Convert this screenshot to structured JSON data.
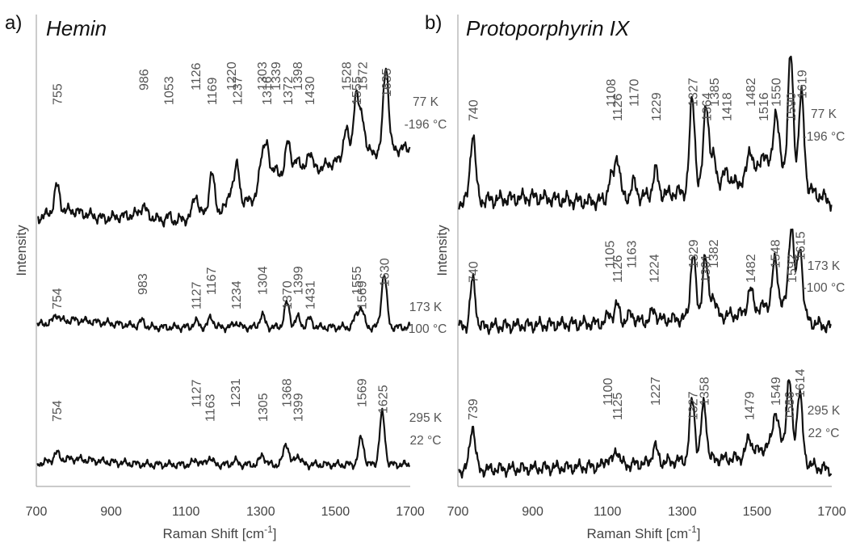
{
  "chart_data": [
    {
      "type": "line",
      "panel_label": "a)",
      "title": "Hemin",
      "xlabel": "Raman Shift [cm",
      "xlabel_sup": "-1",
      "xlabel_end": "]",
      "ylabel": "Intensity",
      "xlim": [
        700,
        1700
      ],
      "xticks": [
        700,
        900,
        1100,
        1300,
        1500,
        1700
      ],
      "y_tick_labels": false,
      "grid": false,
      "series": [
        {
          "temperature_label": [
            "77 K",
            "-196 °C"
          ],
          "baseline": [
            [
              700,
              0.05
            ],
            [
              760,
              0.17
            ],
            [
              800,
              0.16
            ],
            [
              880,
              0.05
            ],
            [
              980,
              0.12
            ],
            [
              1050,
              0.0
            ],
            [
              1100,
              0.05
            ],
            [
              1250,
              0.25
            ],
            [
              1350,
              0.55
            ],
            [
              1450,
              0.75
            ],
            [
              1550,
              0.95
            ],
            [
              1700,
              1.05
            ]
          ],
          "peaks": [
            {
              "x": 755,
              "label": "755",
              "height": 0.35
            },
            {
              "x": 986,
              "label": "986",
              "height": 0.12
            },
            {
              "x": 1053,
              "label": "1053",
              "height": 0.08
            },
            {
              "x": 1126,
              "label": "1126",
              "height": 0.3
            },
            {
              "x": 1169,
              "label": "1169",
              "height": 0.55
            },
            {
              "x": 1220,
              "label": "1220",
              "height": 0.25
            },
            {
              "x": 1237,
              "label": "1237",
              "height": 0.55
            },
            {
              "x": 1303,
              "label": "1303",
              "height": 0.45
            },
            {
              "x": 1316,
              "label": "1316",
              "height": 0.6
            },
            {
              "x": 1339,
              "label": "1339",
              "height": 0.3
            },
            {
              "x": 1372,
              "label": "1372",
              "height": 0.6
            },
            {
              "x": 1398,
              "label": "1398",
              "height": 0.3
            },
            {
              "x": 1430,
              "label": "1430",
              "height": 0.3
            },
            {
              "x": 1528,
              "label": "1528",
              "height": 0.4
            },
            {
              "x": 1555,
              "label": "1555",
              "height": 0.85
            },
            {
              "x": 1572,
              "label": "1572",
              "height": 0.5
            },
            {
              "x": 1635,
              "label": "1635",
              "height": 1.2
            }
          ]
        },
        {
          "temperature_label": [
            "173 K",
            "-100 °C"
          ],
          "baseline": [
            [
              700,
              0.05
            ],
            [
              760,
              0.12
            ],
            [
              800,
              0.15
            ],
            [
              900,
              0.08
            ],
            [
              1000,
              0.0
            ],
            [
              1700,
              0.0
            ]
          ],
          "peaks": [
            {
              "x": 754,
              "label": "754",
              "height": 0.15
            },
            {
              "x": 983,
              "label": "983",
              "height": 0.12
            },
            {
              "x": 1127,
              "label": "1127",
              "height": 0.12
            },
            {
              "x": 1167,
              "label": "1167",
              "height": 0.2
            },
            {
              "x": 1234,
              "label": "1234",
              "height": 0.1
            },
            {
              "x": 1304,
              "label": "1304",
              "height": 0.25
            },
            {
              "x": 1370,
              "label": "1370",
              "height": 0.5
            },
            {
              "x": 1399,
              "label": "1399",
              "height": 0.2
            },
            {
              "x": 1431,
              "label": "1431",
              "height": 0.18
            },
            {
              "x": 1555,
              "label": "1555",
              "height": 0.2
            },
            {
              "x": 1569,
              "label": "1569",
              "height": 0.38
            },
            {
              "x": 1630,
              "label": "1630",
              "height": 1.1
            }
          ]
        },
        {
          "temperature_label": [
            "295 K",
            "22 °C"
          ],
          "baseline": [
            [
              700,
              0.02
            ],
            [
              760,
              0.1
            ],
            [
              800,
              0.12
            ],
            [
              900,
              0.05
            ],
            [
              1000,
              0.0
            ],
            [
              1700,
              0.0
            ]
          ],
          "peaks": [
            {
              "x": 754,
              "label": "754",
              "height": 0.15
            },
            {
              "x": 1127,
              "label": "1127",
              "height": 0.1
            },
            {
              "x": 1163,
              "label": "1163",
              "height": 0.15
            },
            {
              "x": 1231,
              "label": "1231",
              "height": 0.08
            },
            {
              "x": 1305,
              "label": "1305",
              "height": 0.2
            },
            {
              "x": 1368,
              "label": "1368",
              "height": 0.45
            },
            {
              "x": 1399,
              "label": "1399",
              "height": 0.2
            },
            {
              "x": 1569,
              "label": "1569",
              "height": 0.55
            },
            {
              "x": 1625,
              "label": "1625",
              "height": 1.05
            }
          ]
        }
      ]
    },
    {
      "type": "line",
      "panel_label": "b)",
      "title": "Protoporphyrin IX",
      "xlabel": "Raman Shift [cm",
      "xlabel_sup": "-1",
      "xlabel_end": "]",
      "ylabel": "Intensity",
      "xlim": [
        700,
        1700
      ],
      "xticks": [
        700,
        900,
        1100,
        1300,
        1500,
        1700
      ],
      "y_tick_labels": false,
      "grid": false,
      "series": [
        {
          "temperature_label": [
            "77 K",
            "-196 °C"
          ],
          "baseline": [
            [
              700,
              0.0
            ],
            [
              900,
              0.05
            ],
            [
              1050,
              0.0
            ],
            [
              1300,
              0.1
            ],
            [
              1450,
              0.2
            ],
            [
              1560,
              0.4
            ],
            [
              1650,
              0.1
            ],
            [
              1700,
              0.0
            ]
          ],
          "peaks": [
            {
              "x": 740,
              "label": "740",
              "height": 0.7
            },
            {
              "x": 1108,
              "label": "1108",
              "height": 0.2
            },
            {
              "x": 1126,
              "label": "1126",
              "height": 0.45
            },
            {
              "x": 1170,
              "label": "1170",
              "height": 0.15
            },
            {
              "x": 1229,
              "label": "1229",
              "height": 0.25
            },
            {
              "x": 1327,
              "label": "1327",
              "height": 0.95
            },
            {
              "x": 1364,
              "label": "1364",
              "height": 0.9
            },
            {
              "x": 1385,
              "label": "1385",
              "height": 0.3
            },
            {
              "x": 1418,
              "label": "1418",
              "height": 0.15
            },
            {
              "x": 1482,
              "label": "1482",
              "height": 0.3
            },
            {
              "x": 1516,
              "label": "1516",
              "height": 0.2
            },
            {
              "x": 1550,
              "label": "1550",
              "height": 0.55
            },
            {
              "x": 1590,
              "label": "1590",
              "height": 1.2
            },
            {
              "x": 1619,
              "label": "1619",
              "height": 0.9
            }
          ]
        },
        {
          "temperature_label": [
            "173 K",
            "-100 °C"
          ],
          "baseline": [
            [
              700,
              0.0
            ],
            [
              1100,
              0.05
            ],
            [
              1300,
              0.1
            ],
            [
              1450,
              0.15
            ],
            [
              1560,
              0.3
            ],
            [
              1650,
              0.05
            ],
            [
              1700,
              0.0
            ]
          ],
          "peaks": [
            {
              "x": 740,
              "label": "740",
              "height": 0.55
            },
            {
              "x": 1105,
              "label": "1105",
              "height": 0.1
            },
            {
              "x": 1126,
              "label": "1126",
              "height": 0.2
            },
            {
              "x": 1163,
              "label": "1163",
              "height": 0.1
            },
            {
              "x": 1224,
              "label": "1224",
              "height": 0.12
            },
            {
              "x": 1329,
              "label": "1329",
              "height": 0.75
            },
            {
              "x": 1361,
              "label": "1361",
              "height": 0.7
            },
            {
              "x": 1382,
              "label": "1382",
              "height": 0.25
            },
            {
              "x": 1482,
              "label": "1482",
              "height": 0.25
            },
            {
              "x": 1548,
              "label": "1548",
              "height": 0.5
            },
            {
              "x": 1592,
              "label": "1592",
              "height": 1.0
            },
            {
              "x": 1615,
              "label": "1615",
              "height": 0.8
            }
          ]
        },
        {
          "temperature_label": [
            "295 K",
            "22 °C"
          ],
          "baseline": [
            [
              700,
              0.0
            ],
            [
              1100,
              0.05
            ],
            [
              1300,
              0.12
            ],
            [
              1450,
              0.15
            ],
            [
              1560,
              0.35
            ],
            [
              1650,
              0.05
            ],
            [
              1700,
              0.0
            ]
          ],
          "peaks": [
            {
              "x": 739,
              "label": "739",
              "height": 0.55
            },
            {
              "x": 1100,
              "label": "1100",
              "height": 0.1
            },
            {
              "x": 1125,
              "label": "1125",
              "height": 0.2
            },
            {
              "x": 1227,
              "label": "1227",
              "height": 0.2
            },
            {
              "x": 1327,
              "label": "1327",
              "height": 0.75
            },
            {
              "x": 1358,
              "label": "1358",
              "height": 0.7
            },
            {
              "x": 1479,
              "label": "1479",
              "height": 0.2
            },
            {
              "x": 1549,
              "label": "1549",
              "height": 0.4
            },
            {
              "x": 1586,
              "label": "1586",
              "height": 0.85
            },
            {
              "x": 1614,
              "label": "1614",
              "height": 0.8
            }
          ]
        }
      ]
    }
  ]
}
